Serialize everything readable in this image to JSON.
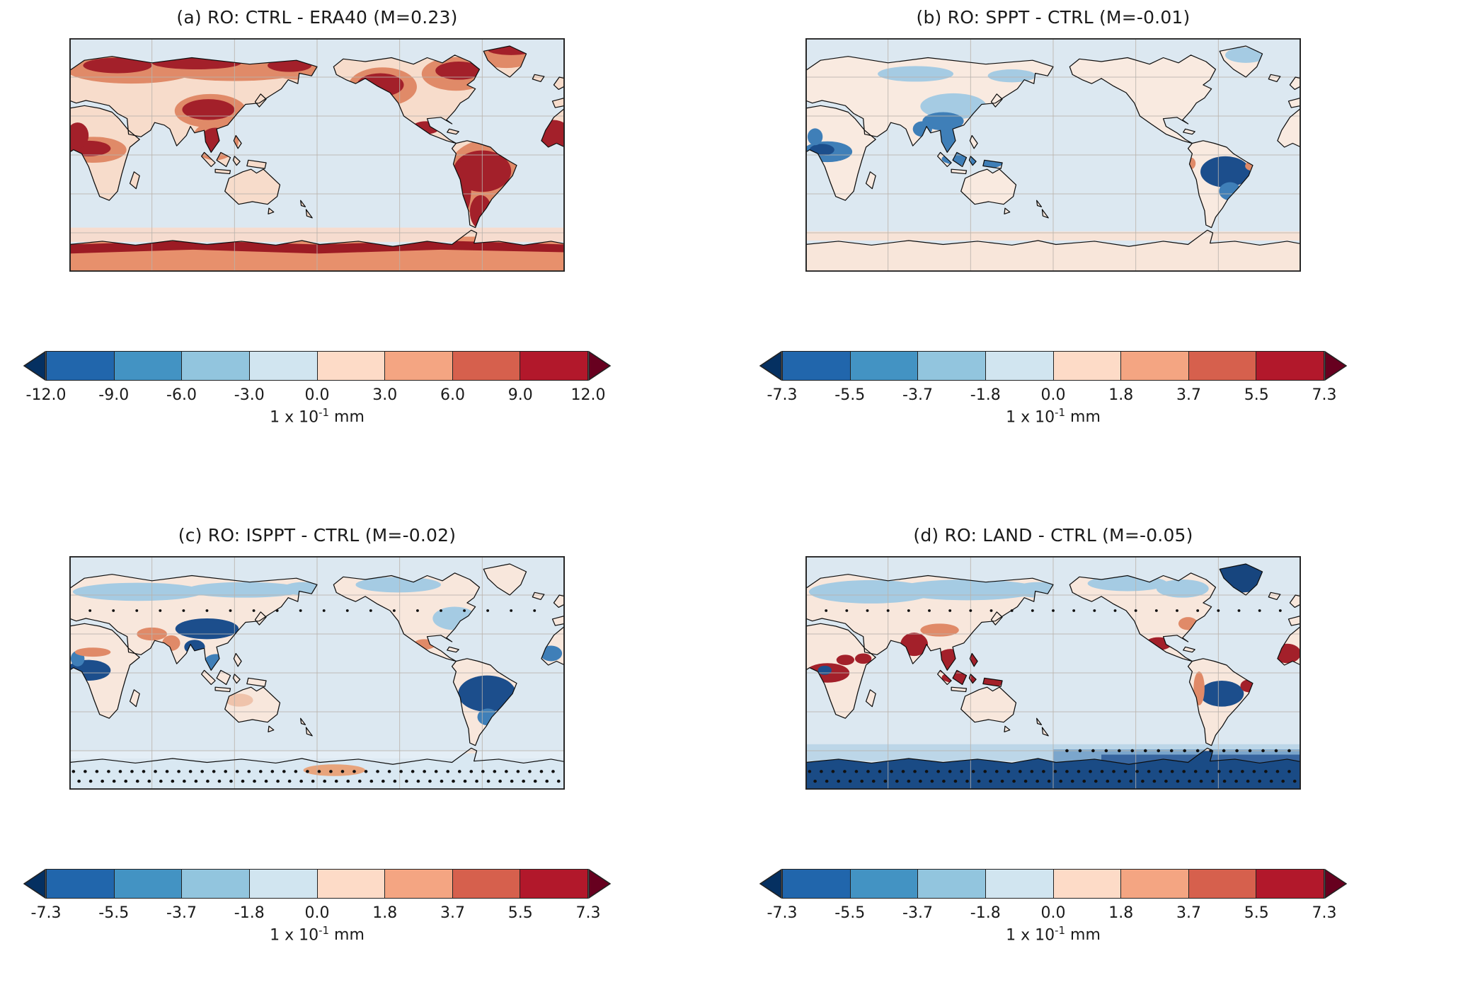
{
  "figure_type": "scientific figure: 2x2 grid of global anomaly maps, each with a diverging colorbar with out-of-range arrows",
  "figure": {
    "unit": {
      "base": "1 x 10",
      "exponent": "-1",
      "suffix": "mm"
    },
    "colorbar_colors": {
      "segments": [
        "#2166ac",
        "#4393c3",
        "#92c5de",
        "#d1e5f0",
        "#fddbc7",
        "#f4a582",
        "#d6604d",
        "#b2182b"
      ],
      "arrow_left": "#053061",
      "arrow_right": "#67001f",
      "outline": "#222222"
    },
    "map_colors": {
      "ocean": "#dce8f1",
      "coastline": "#0d0d0d",
      "graticule": "#b9b3ac",
      "negative_strong": "#1c4e8c",
      "negative": "#3f7fb8",
      "negative_weak": "#a5cbe3",
      "positive_weak": "#f6d8c8",
      "positive": "#e08a68",
      "positive_strong": "#a3202a"
    },
    "panels": [
      {
        "id": "a",
        "title": "(a) RO: CTRL - ERA40 (M=0.23)",
        "colorbar_ticks": [
          "-12.0",
          "-9.0",
          "-6.0",
          "-3.0",
          "0.0",
          "3.0",
          "6.0",
          "9.0",
          "12.0"
        ]
      },
      {
        "id": "b",
        "title": "(b) RO: SPPT - CTRL (M=-0.01)",
        "colorbar_ticks": [
          "-7.3",
          "-5.5",
          "-3.7",
          "-1.8",
          "0.0",
          "1.8",
          "3.7",
          "5.5",
          "7.3"
        ]
      },
      {
        "id": "c",
        "title": "(c) RO: ISPPT - CTRL (M=-0.02)",
        "colorbar_ticks": [
          "-7.3",
          "-5.5",
          "-3.7",
          "-1.8",
          "0.0",
          "1.8",
          "3.7",
          "5.5",
          "7.3"
        ]
      },
      {
        "id": "d",
        "title": "(d) RO: LAND - CTRL (M=-0.05)",
        "colorbar_ticks": [
          "-7.3",
          "-5.5",
          "-3.7",
          "-1.8",
          "0.0",
          "1.8",
          "3.7",
          "5.5",
          "7.3"
        ]
      }
    ]
  },
  "chart_data": [
    {
      "panel": "a",
      "type": "heatmap",
      "title": "(a) RO: CTRL - ERA40 (M=0.23)",
      "variable": "RO (runoff) difference, CTRL minus ERA40",
      "global_mean": 0.23,
      "units": "1 x 10^-1 mm",
      "colorbar_levels": [
        -12,
        -9,
        -6,
        -3,
        0,
        3,
        6,
        9,
        12
      ],
      "colormap": "diverging blue-white-red (RdBu_r) with triangular out-of-range arrows on both ends",
      "projection": "global equirectangular map, 0-360E (Pacific in centre), gray graticule every 60 lon / 30 lat",
      "pattern_summary": "Nearly all land positive (red): darkest reds over Scandinavia and northern Siberia, the Tibetan Plateau and Southeast Asia, equatorial Africa, western North America and eastern Canada, Greenland margins, the Amazon, the Andes and southern South America; pale pink deserts; oceans near zero; a dark red band rings the Antarctic coastline.",
      "stippling": false
    },
    {
      "panel": "b",
      "type": "heatmap",
      "title": "(b) RO: SPPT - CTRL (M=-0.01)",
      "variable": "RO (runoff) difference, SPPT minus CTRL",
      "global_mean": -0.01,
      "units": "1 x 10^-1 mm",
      "colorbar_levels": [
        -7.3,
        -5.5,
        -3.7,
        -1.8,
        0,
        1.8,
        3.7,
        5.5,
        7.3
      ],
      "colormap": "diverging blue-white-red (RdBu_r) with triangular out-of-range arrows on both ends",
      "projection": "global equirectangular map, 0-360E (Pacific in centre), gray graticule every 60 lon / 30 lat",
      "pattern_summary": "Weak signal overall; negative (blue) patches over central Africa, India-Southeast Asia, southern China and the Maritime Continent; strong dark-blue core over the Amazon basin with small positive (red) spots near the Andes and northeast Brazil; faint pale-pink band along Antarctica.",
      "stippling": false
    },
    {
      "panel": "c",
      "type": "heatmap",
      "title": "(c) RO: ISPPT - CTRL (M=-0.02)",
      "variable": "RO (runoff) difference, ISPPT minus CTRL",
      "global_mean": -0.02,
      "units": "1 x 10^-1 mm",
      "colorbar_levels": [
        -7.3,
        -5.5,
        -3.7,
        -1.8,
        0,
        1.8,
        3.7,
        5.5,
        7.3
      ],
      "colormap": "diverging blue-white-red (RdBu_r) with triangular out-of-range arrows on both ends",
      "projection": "global equirectangular map, 0-360E (Pacific in centre), gray graticule every 60 lon / 30 lat",
      "pattern_summary": "Weak mixed signal: light-blue band across high-latitude Eurasia and Canada and the eastern USA; dark-blue cores over the Tibetan Plateau, central Africa, the Amazon and La Plata basins; positive (red) patches over the Sahel, Iran-Pakistan, western India and Mexico; Antarctic strip pale blue with a salmon patch and rows of black significance stipples.",
      "stippling": true
    },
    {
      "panel": "d",
      "type": "heatmap",
      "title": "(d) RO: LAND - CTRL (M=-0.05)",
      "variable": "RO (runoff) difference, LAND minus CTRL",
      "global_mean": -0.05,
      "units": "1 x 10^-1 mm",
      "colorbar_levels": [
        -7.3,
        -5.5,
        -3.7,
        -1.8,
        0,
        1.8,
        3.7,
        5.5,
        7.3
      ],
      "colormap": "diverging blue-white-red (RdBu_r) with triangular out-of-range arrows on both ends",
      "projection": "global equirectangular map, 0-360E (Pacific in centre), gray graticule every 60 lon / 30 lat",
      "pattern_summary": "Largest differences: broad light-blue (negative) band across northern Eurasia and Canada; strong positive (dark red) anomalies over India, Indochina, the Maritime Continent, central and eastern Africa, Mexico and northeast Brazil; dark-blue Amazon core and dark-blue Greenland; circumpolar dark-blue band over Antarctica and the adjacent Southern Ocean with dense black stippling.",
      "stippling": true
    }
  ]
}
